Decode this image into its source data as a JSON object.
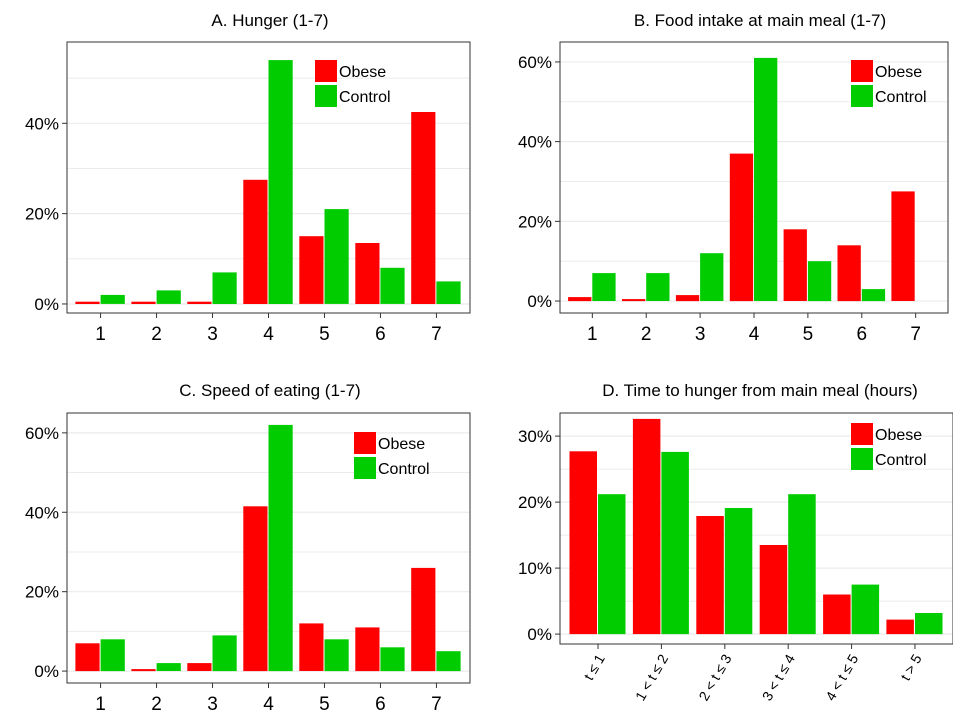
{
  "chart_data": [
    {
      "type": "bar",
      "title": "A. Hunger (1-7)",
      "categories": [
        "1",
        "2",
        "3",
        "4",
        "5",
        "6",
        "7"
      ],
      "series": [
        {
          "name": "Obese",
          "values": [
            0.5,
            0.5,
            0.5,
            27.5,
            15,
            13.5,
            42.5
          ]
        },
        {
          "name": "Control",
          "values": [
            2,
            3,
            7,
            54,
            21,
            8,
            5
          ]
        }
      ],
      "ylim": [
        -2,
        58
      ],
      "yticks": [
        0,
        20,
        40
      ],
      "ytick_labels": [
        "0%",
        "20%",
        "40%"
      ],
      "legend": "top-right",
      "grid": true
    },
    {
      "type": "bar",
      "title": "B. Food intake at main meal (1-7)",
      "categories": [
        "1",
        "2",
        "3",
        "4",
        "5",
        "6",
        "7"
      ],
      "series": [
        {
          "name": "Obese",
          "values": [
            1,
            0.5,
            1.5,
            37,
            18,
            14,
            27.5
          ]
        },
        {
          "name": "Control",
          "values": [
            7,
            7,
            12,
            61,
            10,
            3,
            0
          ]
        }
      ],
      "ylim": [
        -3,
        65
      ],
      "yticks": [
        0,
        20,
        40,
        60
      ],
      "ytick_labels": [
        "0%",
        "20%",
        "40%",
        "60%"
      ],
      "legend": "top-right",
      "grid": true
    },
    {
      "type": "bar",
      "title": "C. Speed of eating (1-7)",
      "categories": [
        "1",
        "2",
        "3",
        "4",
        "5",
        "6",
        "7"
      ],
      "series": [
        {
          "name": "Obese",
          "values": [
            7,
            0.5,
            2,
            41.5,
            12,
            11,
            26
          ]
        },
        {
          "name": "Control",
          "values": [
            8,
            2,
            9,
            62,
            8,
            6,
            5
          ]
        }
      ],
      "ylim": [
        -3,
        65
      ],
      "yticks": [
        0,
        20,
        40,
        60
      ],
      "ytick_labels": [
        "0%",
        "20%",
        "40%",
        "60%"
      ],
      "legend": "top-right",
      "grid": true
    },
    {
      "type": "bar",
      "title": "D. Time to hunger from main meal (hours)",
      "categories": [
        "t ≤ 1",
        "1 < t ≤ 2",
        "2 < t ≤ 3",
        "3 < t ≤ 4",
        "4 < t ≤ 5",
        "t > 5"
      ],
      "series": [
        {
          "name": "Obese",
          "values": [
            27.7,
            32.6,
            17.9,
            13.5,
            6,
            2.2
          ]
        },
        {
          "name": "Control",
          "values": [
            21.2,
            27.6,
            19.1,
            21.2,
            7.5,
            3.2
          ]
        }
      ],
      "ylim": [
        -1.5,
        33.5
      ],
      "yticks": [
        0,
        10,
        20,
        30
      ],
      "ytick_labels": [
        "0%",
        "10%",
        "20%",
        "30%"
      ],
      "legend": "top-right",
      "grid": true
    }
  ],
  "colors": {
    "obese": "#ff0000",
    "control": "#00cc00",
    "grid": "#ebebeb",
    "axis": "#333333"
  }
}
